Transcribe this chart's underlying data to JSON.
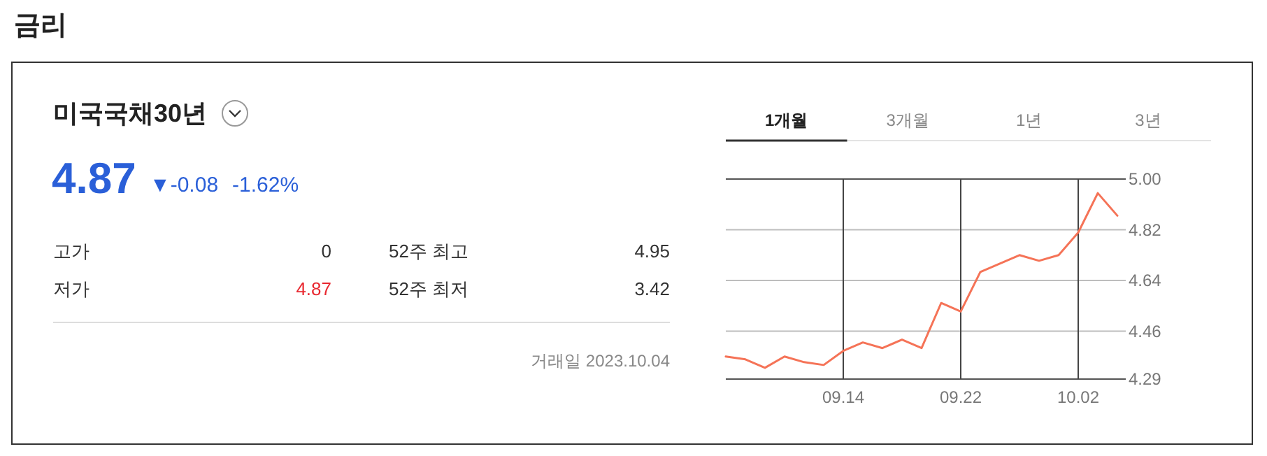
{
  "chart_data": [
    {
      "type": "other",
      "title": "금리",
      "subtitle": "미국국채30년",
      "annotations": [
        "4.87",
        "▼-0.08",
        "-1.62%",
        "고가",
        "0",
        "저가",
        "4.87",
        "52주 최고",
        "4.95",
        "52주 최저",
        "3.42",
        "거래일 2023.10.04"
      ]
    },
    {
      "type": "line",
      "categories": [
        null,
        null,
        null,
        null,
        null,
        null,
        "09.14",
        null,
        null,
        null,
        null,
        null,
        "09.22",
        null,
        null,
        null,
        null,
        null,
        "10.02",
        null,
        null
      ],
      "values": [
        4.37,
        4.36,
        4.33,
        4.37,
        4.35,
        4.34,
        4.39,
        4.42,
        4.4,
        4.43,
        4.4,
        4.56,
        4.53,
        4.67,
        4.7,
        4.73,
        4.71,
        4.73,
        4.81,
        4.95,
        4.87
      ],
      "color": "#f57357",
      "ylim": [
        4.29,
        5.0
      ],
      "yticks": [
        4.29,
        4.46,
        4.64,
        4.82,
        {
          "value": 5.0,
          "label": "5.00"
        }
      ],
      "grid": true,
      "annotations": [
        "1개월",
        "3개월",
        "1년",
        "3년"
      ]
    }
  ]
}
